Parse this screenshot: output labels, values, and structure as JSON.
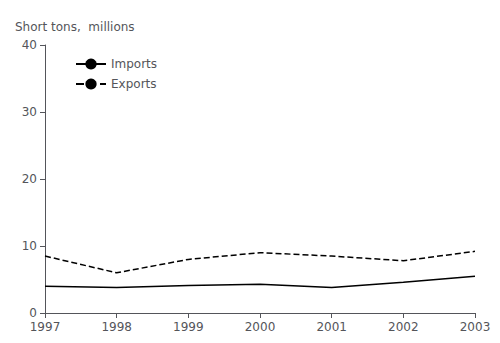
{
  "chart_data": {
    "type": "line",
    "ylabel": "Short tons,  millions",
    "x": [
      1997,
      1998,
      1999,
      2000,
      2001,
      2002,
      2003
    ],
    "xlim": [
      1997,
      2003
    ],
    "xticks": [
      1997,
      1998,
      1999,
      2000,
      2001,
      2002,
      2003
    ],
    "ylim": [
      0,
      40
    ],
    "yticks": [
      0,
      10,
      20,
      30,
      40
    ],
    "series": [
      {
        "name": "Imports",
        "color": "#000000",
        "line_style": "solid",
        "values": [
          4.0,
          3.8,
          4.1,
          4.3,
          3.8,
          4.6,
          5.5
        ]
      },
      {
        "name": "Exports",
        "color": "#000000",
        "line_style": "dashed",
        "values": [
          8.5,
          6.0,
          8.0,
          9.0,
          8.5,
          7.8,
          9.2
        ]
      }
    ],
    "legend": "upper left",
    "grid": false
  }
}
